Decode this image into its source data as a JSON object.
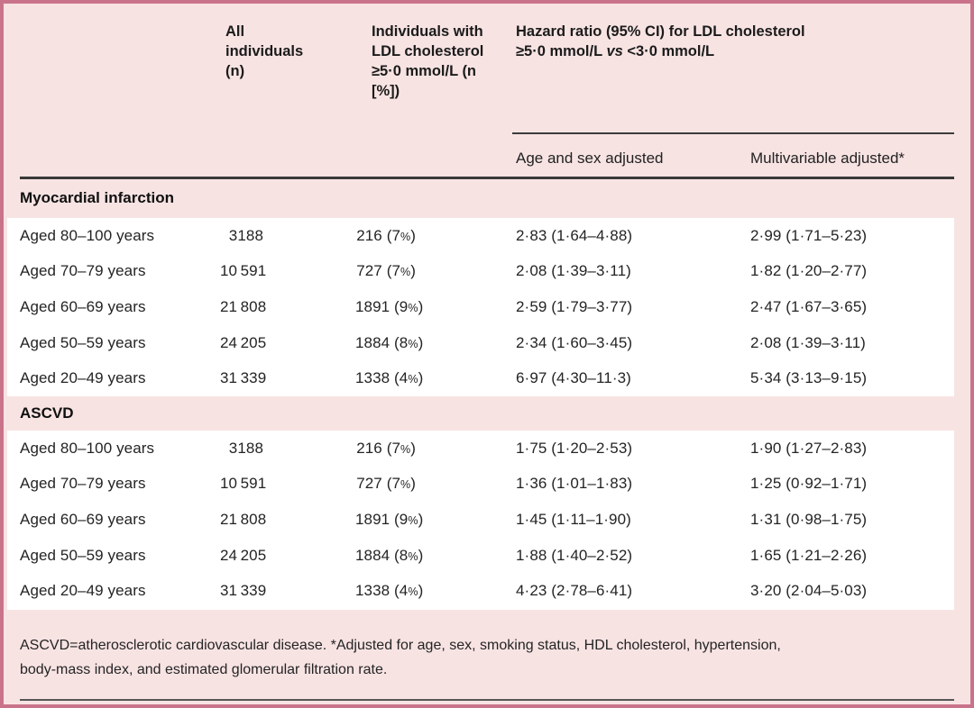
{
  "colors": {
    "card_background": "#f8e3e3",
    "border": "#c9738a",
    "row_background": "#ffffff",
    "rule_dark": "#383838",
    "text": "#242424"
  },
  "header": {
    "col_all_individuals": "All individuals (n)",
    "col_ldl": "Individuals with LDL cholesterol ≥5·0 mmol/L (n [%])",
    "hazard_group": {
      "line1": "Hazard ratio (95% CI) for LDL cholesterol",
      "line2_before_vs": "≥5·0 mmol/L ",
      "vs": "vs",
      "line2_after_vs": " <3·0 mmol/L"
    },
    "sub_age_sex": "Age and sex adjusted",
    "sub_multivariable": "Multivariable adjusted*"
  },
  "sections": [
    {
      "title": "Myocardial infarction",
      "rows": [
        {
          "label": "Aged 80–100 years",
          "all_n": "3188",
          "ldl_n": "216 (7%)",
          "hr_age_sex": "2·83 (1·64–4·88)",
          "hr_multi": "2·99 (1·71–5·23)"
        },
        {
          "label": "Aged 70–79 years",
          "all_n": "10 591",
          "ldl_n": "727 (7%)",
          "hr_age_sex": "2·08 (1·39–3·11)",
          "hr_multi": "1·82 (1·20–2·77)"
        },
        {
          "label": "Aged 60–69 years",
          "all_n": "21 808",
          "ldl_n": "1891 (9%)",
          "hr_age_sex": "2·59 (1·79–3·77)",
          "hr_multi": "2·47 (1·67–3·65)"
        },
        {
          "label": "Aged 50–59 years",
          "all_n": "24 205",
          "ldl_n": "1884 (8%)",
          "hr_age_sex": "2·34 (1·60–3·45)",
          "hr_multi": "2·08 (1·39–3·11)"
        },
        {
          "label": "Aged 20–49 years",
          "all_n": "31 339",
          "ldl_n": "1338 (4%)",
          "hr_age_sex": "6·97 (4·30–11·3)",
          "hr_multi": "5·34 (3·13–9·15)"
        }
      ]
    },
    {
      "title": "ASCVD",
      "rows": [
        {
          "label": "Aged 80–100 years",
          "all_n": "3188",
          "ldl_n": "216 (7%)",
          "hr_age_sex": "1·75 (1·20–2·53)",
          "hr_multi": "1·90 (1·27–2·83)"
        },
        {
          "label": "Aged 70–79 years",
          "all_n": "10 591",
          "ldl_n": "727 (7%)",
          "hr_age_sex": "1·36 (1·01–1·83)",
          "hr_multi": "1·25 (0·92–1·71)"
        },
        {
          "label": "Aged 60–69 years",
          "all_n": "21 808",
          "ldl_n": "1891 (9%)",
          "hr_age_sex": "1·45 (1·11–1·90)",
          "hr_multi": "1·31 (0·98–1·75)"
        },
        {
          "label": "Aged 50–59 years",
          "all_n": "24 205",
          "ldl_n": "1884 (8%)",
          "hr_age_sex": "1·88 (1·40–2·52)",
          "hr_multi": "1·65 (1·21–2·26)"
        },
        {
          "label": "Aged 20–49 years",
          "all_n": "31 339",
          "ldl_n": "1338 (4%)",
          "hr_age_sex": "4·23 (2·78–6·41)",
          "hr_multi": "3·20 (2·04–5·03)"
        }
      ]
    }
  ],
  "footnote": {
    "line1": "ASCVD=atherosclerotic cardiovascular disease. *Adjusted for age, sex, smoking status, HDL cholesterol, hypertension,",
    "line2": "body-mass index, and estimated glomerular filtration rate."
  }
}
